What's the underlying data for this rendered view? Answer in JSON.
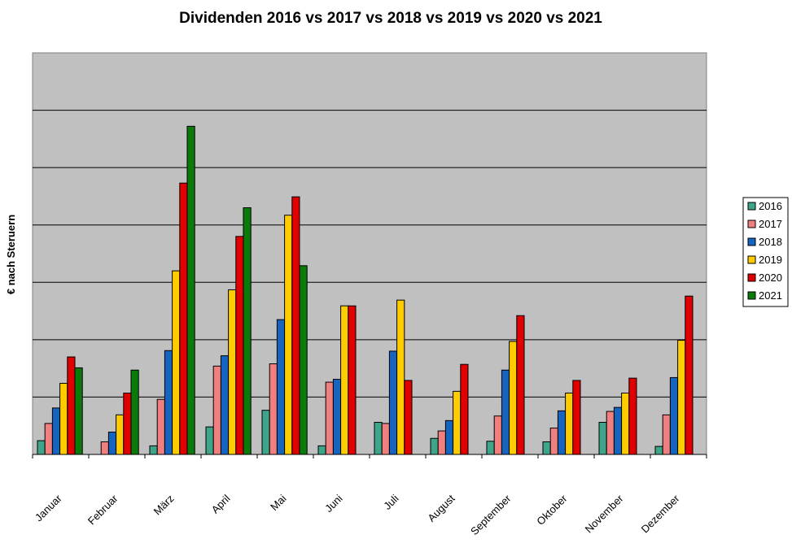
{
  "chart_data": {
    "type": "bar",
    "title": "Dividenden 2016 vs 2017 vs 2018 vs 2019 vs 2020 vs 2021",
    "xlabel": "",
    "ylabel": "€ nach Steruern",
    "ylim": [
      0,
      7
    ],
    "grid": true,
    "legend_position": "right",
    "categories": [
      "Januar",
      "Februar",
      "März",
      "April",
      "Mai",
      "Juni",
      "Juli",
      "August",
      "September",
      "Oktober",
      "November",
      "Dezember"
    ],
    "series": [
      {
        "name": "2016",
        "color": "#3fa58a",
        "values": [
          0.24,
          0,
          0.15,
          0.48,
          0.77,
          0.15,
          0.56,
          0.28,
          0.23,
          0.22,
          0.56,
          0.14
        ]
      },
      {
        "name": "2017",
        "color": "#f08080",
        "values": [
          0.54,
          0.22,
          0.96,
          1.54,
          1.58,
          1.26,
          0.54,
          0.41,
          0.67,
          0.46,
          0.75,
          0.69
        ]
      },
      {
        "name": "2018",
        "color": "#1565c0",
        "values": [
          0.81,
          0.39,
          1.81,
          1.72,
          2.35,
          1.31,
          1.8,
          0.59,
          1.47,
          0.76,
          0.82,
          1.34
        ]
      },
      {
        "name": "2019",
        "color": "#ffcc00",
        "values": [
          1.24,
          0.69,
          3.2,
          2.87,
          4.17,
          2.59,
          2.69,
          1.1,
          1.97,
          1.07,
          1.07,
          1.99
        ]
      },
      {
        "name": "2020",
        "color": "#e00000",
        "values": [
          1.7,
          1.07,
          4.73,
          3.8,
          4.49,
          2.59,
          1.29,
          1.57,
          2.42,
          1.29,
          1.33,
          2.76
        ]
      },
      {
        "name": "2021",
        "color": "#0a7a0a",
        "values": [
          1.51,
          1.47,
          5.72,
          4.3,
          3.29,
          0,
          0,
          0,
          0,
          0,
          0,
          0
        ]
      }
    ]
  }
}
